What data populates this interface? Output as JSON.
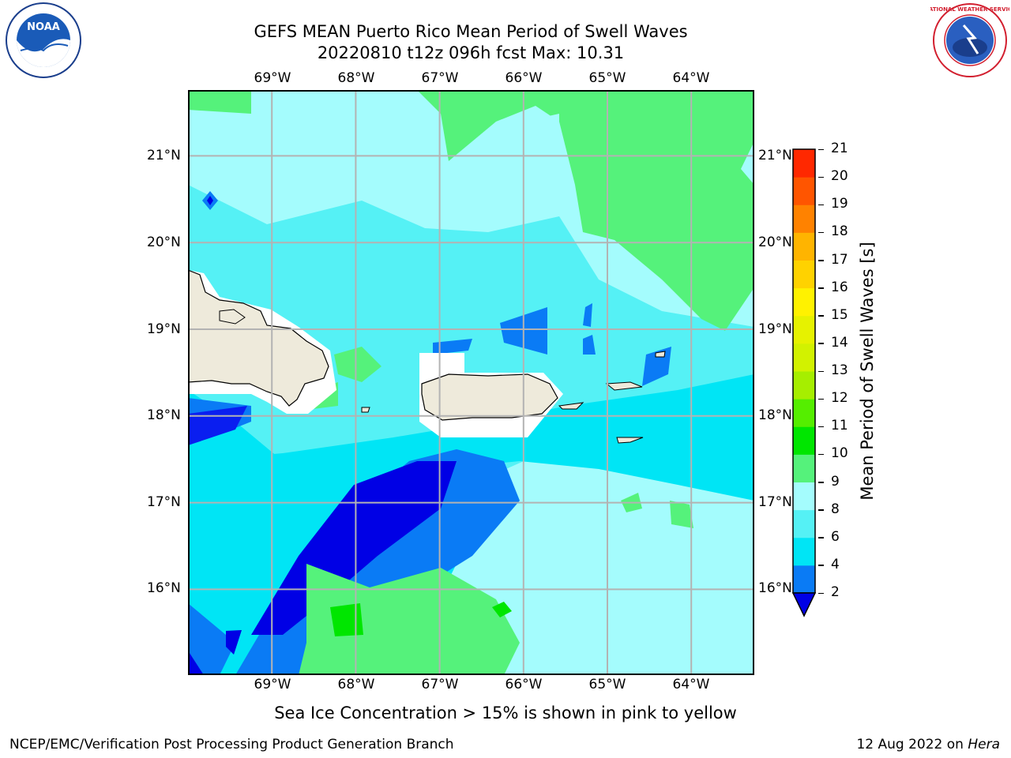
{
  "header": {
    "title_line1": "GEFS MEAN Puerto Rico Mean Period of Swell Waves",
    "title_line2": "20220810 t12z 096h fcst   Max: 10.31"
  },
  "logos": {
    "noaa_text": "NOAA",
    "nws_ring_text": "NATIONAL WEATHER SERVICE"
  },
  "map": {
    "lon_labels": [
      "69°W",
      "68°W",
      "67°W",
      "66°W",
      "65°W",
      "64°W"
    ],
    "lat_labels": [
      "21°N",
      "20°N",
      "19°N",
      "18°N",
      "17°N",
      "16°N"
    ],
    "lon_range": [
      -70,
      -63.25
    ],
    "lat_range": [
      15,
      21.75
    ],
    "grid": true
  },
  "colorbar": {
    "label": "Mean Period of Swell Waves [s]",
    "ticks": [
      "2",
      "4",
      "6",
      "8",
      "9",
      "10",
      "11",
      "12",
      "13",
      "14",
      "15",
      "16",
      "17",
      "18",
      "19",
      "20",
      "21"
    ],
    "colors": [
      "#0a1ef0",
      "#0a7bf5",
      "#00e5f5",
      "#55f1f5",
      "#a4fcfd",
      "#55f27b",
      "#00e600",
      "#55ee00",
      "#a6ee00",
      "#d2f200",
      "#e6f200",
      "#fff200",
      "#ffd200",
      "#ffb400",
      "#ff8200",
      "#ff5500",
      "#ff2800",
      "#ff0000"
    ],
    "extend_color": "#0000e5"
  },
  "caption": "Sea Ice Concentration > 15% is shown in pink to yellow",
  "footer": {
    "left": "NCEP/EMC/Verification Post Processing Product Generation Branch",
    "right_date": "12 Aug 2022 on",
    "right_host": "Hera"
  }
}
